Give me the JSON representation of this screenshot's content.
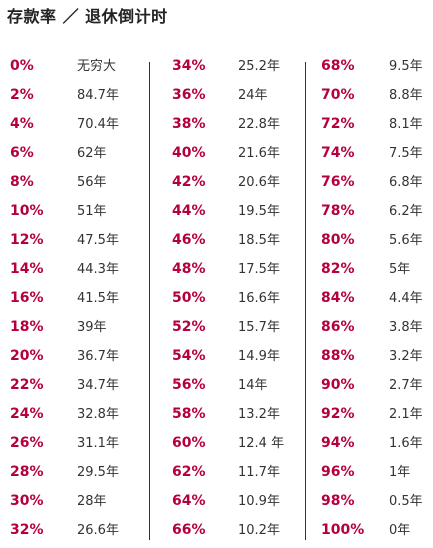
{
  "title": "存款率 ／ 退休倒计时",
  "columns": [
    {
      "rows": [
        {
          "rate": "0%",
          "years": "无穷大"
        },
        {
          "rate": "2%",
          "years": "84.7年"
        },
        {
          "rate": "4%",
          "years": "70.4年"
        },
        {
          "rate": "6%",
          "years": "62年"
        },
        {
          "rate": "8%",
          "years": "56年"
        },
        {
          "rate": "10%",
          "years": "51年"
        },
        {
          "rate": "12%",
          "years": "47.5年"
        },
        {
          "rate": "14%",
          "years": "44.3年"
        },
        {
          "rate": "16%",
          "years": "41.5年"
        },
        {
          "rate": "18%",
          "years": "39年"
        },
        {
          "rate": "20%",
          "years": "36.7年"
        },
        {
          "rate": "22%",
          "years": "34.7年"
        },
        {
          "rate": "24%",
          "years": "32.8年"
        },
        {
          "rate": "26%",
          "years": "31.1年"
        },
        {
          "rate": "28%",
          "years": "29.5年"
        },
        {
          "rate": "30%",
          "years": "28年"
        },
        {
          "rate": "32%",
          "years": "26.6年"
        }
      ]
    },
    {
      "rows": [
        {
          "rate": "34%",
          "years": "25.2年"
        },
        {
          "rate": "36%",
          "years": "24年"
        },
        {
          "rate": "38%",
          "years": "22.8年"
        },
        {
          "rate": "40%",
          "years": "21.6年"
        },
        {
          "rate": "42%",
          "years": "20.6年"
        },
        {
          "rate": "44%",
          "years": "19.5年"
        },
        {
          "rate": "46%",
          "years": "18.5年"
        },
        {
          "rate": "48%",
          "years": "17.5年"
        },
        {
          "rate": "50%",
          "years": "16.6年"
        },
        {
          "rate": "52%",
          "years": "15.7年"
        },
        {
          "rate": "54%",
          "years": "14.9年"
        },
        {
          "rate": "56%",
          "years": "14年"
        },
        {
          "rate": "58%",
          "years": "13.2年"
        },
        {
          "rate": "60%",
          "years": "12.4 年"
        },
        {
          "rate": "62%",
          "years": "11.7年"
        },
        {
          "rate": "64%",
          "years": "10.9年"
        },
        {
          "rate": "66%",
          "years": "10.2年"
        }
      ]
    },
    {
      "rows": [
        {
          "rate": "68%",
          "years": "9.5年"
        },
        {
          "rate": "70%",
          "years": "8.8年"
        },
        {
          "rate": "72%",
          "years": "8.1年"
        },
        {
          "rate": "74%",
          "years": "7.5年"
        },
        {
          "rate": "76%",
          "years": "6.8年"
        },
        {
          "rate": "78%",
          "years": "6.2年"
        },
        {
          "rate": "80%",
          "years": "5.6年"
        },
        {
          "rate": "82%",
          "years": "5年"
        },
        {
          "rate": "84%",
          "years": "4.4年"
        },
        {
          "rate": "86%",
          "years": "3.8年"
        },
        {
          "rate": "88%",
          "years": "3.2年"
        },
        {
          "rate": "90%",
          "years": "2.7年"
        },
        {
          "rate": "92%",
          "years": "2.1年"
        },
        {
          "rate": "94%",
          "years": "1.6年"
        },
        {
          "rate": "96%",
          "years": "1年"
        },
        {
          "rate": "98%",
          "years": "0.5年"
        },
        {
          "rate": "100%",
          "years": "0年"
        }
      ]
    }
  ],
  "colors": {
    "rate": "#b5003e",
    "years": "#333333",
    "title": "#222222",
    "divider": "#333333"
  }
}
